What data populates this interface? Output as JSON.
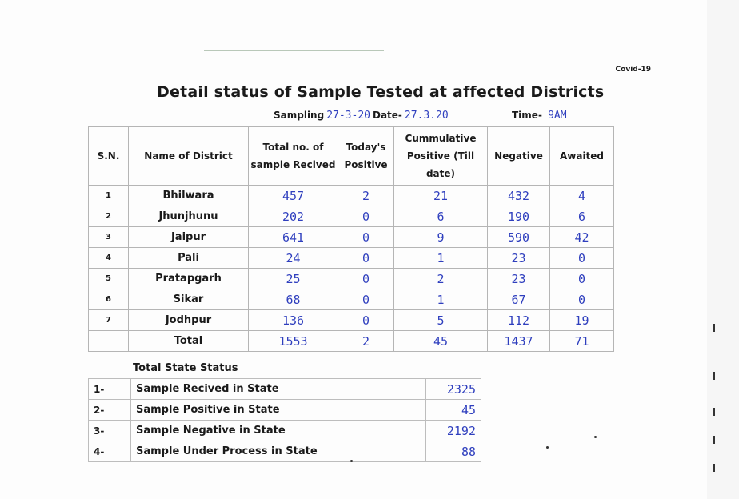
{
  "corner_label": "Covid-19",
  "title": "Detail status of Sample Tested at affected Districts",
  "sampling_label": "Sampling",
  "sampling_handwritten": "27-3-20",
  "date_label": "Date-",
  "date_value": "27.3.20",
  "time_label": "Time-",
  "time_value": "9AM",
  "headers": {
    "sn": "S.N.",
    "district": "Name of District",
    "total": "Total no. of sample Recived",
    "today": "Today's Positive",
    "cumulative": "Cummulative Positive (Till date)",
    "negative": "Negative",
    "awaited": "Awaited"
  },
  "rows": [
    {
      "sn": "1",
      "name": "Bhilwara",
      "total": "457",
      "today": "2",
      "cumulative": "21",
      "negative": "432",
      "awaited": "4"
    },
    {
      "sn": "2",
      "name": "Jhunjhunu",
      "total": "202",
      "today": "0",
      "cumulative": "6",
      "negative": "190",
      "awaited": "6"
    },
    {
      "sn": "3",
      "name": "Jaipur",
      "total": "641",
      "today": "0",
      "cumulative": "9",
      "negative": "590",
      "awaited": "42"
    },
    {
      "sn": "4",
      "name": "Pali",
      "total": "24",
      "today": "0",
      "cumulative": "1",
      "negative": "23",
      "awaited": "0"
    },
    {
      "sn": "5",
      "name": "Pratapgarh",
      "total": "25",
      "today": "0",
      "cumulative": "2",
      "negative": "23",
      "awaited": "0"
    },
    {
      "sn": "6",
      "name": "Sikar",
      "total": "68",
      "today": "0",
      "cumulative": "1",
      "negative": "67",
      "awaited": "0"
    },
    {
      "sn": "7",
      "name": "Jodhpur",
      "total": "136",
      "today": "0",
      "cumulative": "5",
      "negative": "112",
      "awaited": "19"
    }
  ],
  "total_row": {
    "label": "Total",
    "total": "1553",
    "today": "2",
    "cumulative": "45",
    "negative": "1437",
    "awaited": "71"
  },
  "state_status": {
    "heading": "Total State Status",
    "items": [
      {
        "index": "1-",
        "label": "Sample Recived in State",
        "value": "2325"
      },
      {
        "index": "2-",
        "label": "Sample Positive in State",
        "value": "45"
      },
      {
        "index": "3-",
        "label": "Sample Negative in State",
        "value": "2192"
      },
      {
        "index": "4-",
        "label": "Sample Under Process in State",
        "value": "88"
      }
    ]
  },
  "colors": {
    "ink_blue": "#2f3fbe",
    "border": "#b5b5b5"
  }
}
